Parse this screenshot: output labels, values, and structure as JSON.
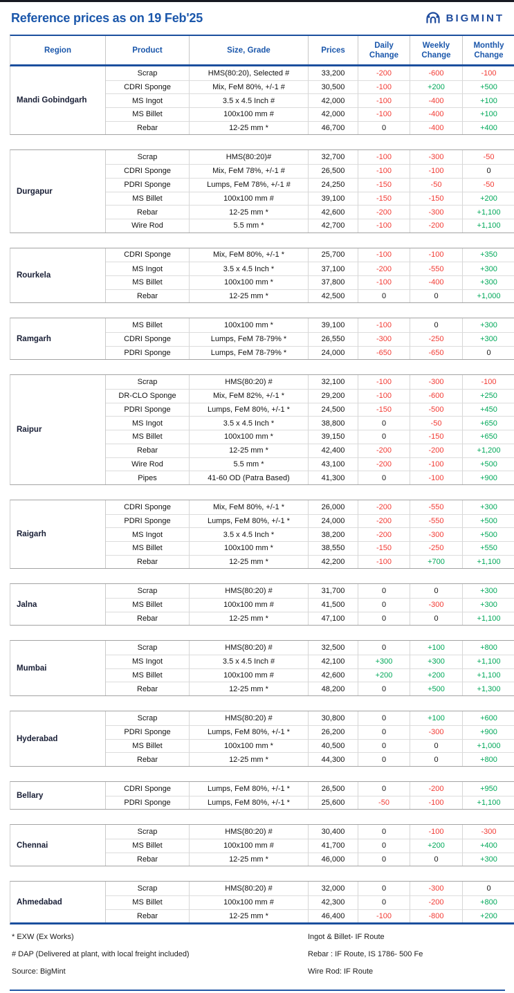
{
  "page": {
    "title": "Reference prices as on 19 Feb'25",
    "brand": "BIGMINT"
  },
  "colors": {
    "accent_blue": "#1b57ab",
    "table_border_blue": "#1b4f9e",
    "negative_red": "#f23a33",
    "positive_green": "#00a859"
  },
  "table": {
    "columns": [
      {
        "label": "Region"
      },
      {
        "label": "Product"
      },
      {
        "label": "Size, Grade"
      },
      {
        "label": "Prices"
      },
      {
        "label": "Daily",
        "label2": "Change"
      },
      {
        "label": "Weekly",
        "label2": "Change"
      },
      {
        "label": "Monthly",
        "label2": "Change"
      }
    ],
    "sections": [
      {
        "region": "Mandi Gobindgarh",
        "rows": [
          {
            "product": "Scrap",
            "size": "HMS(80:20), Selected #",
            "price": "33,200",
            "daily": "-200",
            "weekly": "-600",
            "monthly": "-100"
          },
          {
            "product": "CDRI Sponge",
            "size": "Mix, FeM 80%, +/-1 #",
            "price": "30,500",
            "daily": "-100",
            "weekly": "+200",
            "monthly": "+500"
          },
          {
            "product": "MS Ingot",
            "size": "3.5 x 4.5 Inch #",
            "price": "42,000",
            "daily": "-100",
            "weekly": "-400",
            "monthly": "+100"
          },
          {
            "product": "MS Billet",
            "size": "100x100 mm #",
            "price": "42,000",
            "daily": "-100",
            "weekly": "-400",
            "monthly": "+100"
          },
          {
            "product": "Rebar",
            "size": "12-25 mm *",
            "price": "46,700",
            "daily": "0",
            "weekly": "-400",
            "monthly": "+400"
          }
        ]
      },
      {
        "region": "Durgapur",
        "rows": [
          {
            "product": "Scrap",
            "size": "HMS(80:20)#",
            "price": "32,700",
            "daily": "-100",
            "weekly": "-300",
            "monthly": "-50"
          },
          {
            "product": "CDRI Sponge",
            "size": "Mix, FeM 78%, +/-1 #",
            "price": "26,500",
            "daily": "-100",
            "weekly": "-100",
            "monthly": "0"
          },
          {
            "product": "PDRI Sponge",
            "size": "Lumps, FeM 78%, +/-1 #",
            "price": "24,250",
            "daily": "-150",
            "weekly": "-50",
            "monthly": "-50"
          },
          {
            "product": "MS Billet",
            "size": "100x100 mm #",
            "price": "39,100",
            "daily": "-150",
            "weekly": "-150",
            "monthly": "+200"
          },
          {
            "product": "Rebar",
            "size": "12-25 mm *",
            "price": "42,600",
            "daily": "-200",
            "weekly": "-300",
            "monthly": "+1,100"
          },
          {
            "product": "Wire Rod",
            "size": "5.5 mm *",
            "price": "42,700",
            "daily": "-100",
            "weekly": "-200",
            "monthly": "+1,100"
          }
        ]
      },
      {
        "region": "Rourkela",
        "rows": [
          {
            "product": "CDRI Sponge",
            "size": "Mix, FeM 80%, +/-1 *",
            "price": "25,700",
            "daily": "-100",
            "weekly": "-100",
            "monthly": "+350"
          },
          {
            "product": "MS Ingot",
            "size": "3.5 x 4.5 Inch *",
            "price": "37,100",
            "daily": "-200",
            "weekly": "-550",
            "monthly": "+300"
          },
          {
            "product": "MS Billet",
            "size": "100x100 mm *",
            "price": "37,800",
            "daily": "-100",
            "weekly": "-400",
            "monthly": "+300"
          },
          {
            "product": "Rebar",
            "size": "12-25 mm *",
            "price": "42,500",
            "daily": "0",
            "weekly": "0",
            "monthly": "+1,000"
          }
        ]
      },
      {
        "region": "Ramgarh",
        "rows": [
          {
            "product": "MS Billet",
            "size": "100x100 mm *",
            "price": "39,100",
            "daily": "-100",
            "weekly": "0",
            "monthly": "+300"
          },
          {
            "product": "CDRI Sponge",
            "size": "Lumps, FeM 78-79% *",
            "price": "26,550",
            "daily": "-300",
            "weekly": "-250",
            "monthly": "+300"
          },
          {
            "product": "PDRI Sponge",
            "size": "Lumps, FeM 78-79% *",
            "price": "24,000",
            "daily": "-650",
            "weekly": "-650",
            "monthly": "0"
          }
        ]
      },
      {
        "region": "Raipur",
        "rows": [
          {
            "product": "Scrap",
            "size": "HMS(80:20) #",
            "price": "32,100",
            "daily": "-100",
            "weekly": "-300",
            "monthly": "-100"
          },
          {
            "product": "DR-CLO Sponge",
            "size": "Mix, FeM 82%, +/-1 *",
            "price": "29,200",
            "daily": "-100",
            "weekly": "-600",
            "monthly": "+250"
          },
          {
            "product": "PDRI Sponge",
            "size": "Lumps, FeM 80%, +/-1 *",
            "price": "24,500",
            "daily": "-150",
            "weekly": "-500",
            "monthly": "+450"
          },
          {
            "product": "MS Ingot",
            "size": "3.5 x 4.5 Inch *",
            "price": "38,800",
            "daily": "0",
            "weekly": "-50",
            "monthly": "+650"
          },
          {
            "product": "MS Billet",
            "size": "100x100 mm *",
            "price": "39,150",
            "daily": "0",
            "weekly": "-150",
            "monthly": "+650"
          },
          {
            "product": "Rebar",
            "size": "12-25 mm *",
            "price": "42,400",
            "daily": "-200",
            "weekly": "-200",
            "monthly": "+1,200"
          },
          {
            "product": "Wire Rod",
            "size": "5.5 mm *",
            "price": "43,100",
            "daily": "-200",
            "weekly": "-100",
            "monthly": "+500"
          },
          {
            "product": "Pipes",
            "size": "41-60 OD (Patra Based)",
            "price": "41,300",
            "daily": "0",
            "weekly": "-100",
            "monthly": "+900"
          }
        ]
      },
      {
        "region": "Raigarh",
        "rows": [
          {
            "product": "CDRI Sponge",
            "size": "Mix, FeM 80%, +/-1 *",
            "price": "26,000",
            "daily": "-200",
            "weekly": "-550",
            "monthly": "+300"
          },
          {
            "product": "PDRI Sponge",
            "size": "Lumps, FeM 80%, +/-1 *",
            "price": "24,000",
            "daily": "-200",
            "weekly": "-550",
            "monthly": "+500"
          },
          {
            "product": "MS Ingot",
            "size": "3.5 x 4.5 Inch *",
            "price": "38,200",
            "daily": "-200",
            "weekly": "-300",
            "monthly": "+500"
          },
          {
            "product": "MS Billet",
            "size": "100x100 mm *",
            "price": "38,550",
            "daily": "-150",
            "weekly": "-250",
            "monthly": "+550"
          },
          {
            "product": "Rebar",
            "size": "12-25 mm *",
            "price": "42,200",
            "daily": "-100",
            "weekly": "+700",
            "monthly": "+1,100"
          }
        ]
      },
      {
        "region": "Jalna",
        "rows": [
          {
            "product": "Scrap",
            "size": "HMS(80:20) #",
            "price": "31,700",
            "daily": "0",
            "weekly": "0",
            "monthly": "+300"
          },
          {
            "product": "MS Billet",
            "size": "100x100 mm #",
            "price": "41,500",
            "daily": "0",
            "weekly": "-300",
            "monthly": "+300"
          },
          {
            "product": "Rebar",
            "size": "12-25 mm *",
            "price": "47,100",
            "daily": "0",
            "weekly": "0",
            "monthly": "+1,100"
          }
        ]
      },
      {
        "region": "Mumbai",
        "rows": [
          {
            "product": "Scrap",
            "size": "HMS(80:20) #",
            "price": "32,500",
            "daily": "0",
            "weekly": "+100",
            "monthly": "+800"
          },
          {
            "product": "MS Ingot",
            "size": "3.5 x 4.5 Inch #",
            "price": "42,100",
            "daily": "+300",
            "weekly": "+300",
            "monthly": "+1,100"
          },
          {
            "product": "MS Billet",
            "size": "100x100 mm #",
            "price": "42,600",
            "daily": "+200",
            "weekly": "+200",
            "monthly": "+1,100"
          },
          {
            "product": "Rebar",
            "size": "12-25 mm *",
            "price": "48,200",
            "daily": "0",
            "weekly": "+500",
            "monthly": "+1,300"
          }
        ]
      },
      {
        "region": "Hyderabad",
        "rows": [
          {
            "product": "Scrap",
            "size": "HMS(80:20) #",
            "price": "30,800",
            "daily": "0",
            "weekly": "+100",
            "monthly": "+600"
          },
          {
            "product": "PDRI Sponge",
            "size": "Lumps, FeM 80%, +/-1 *",
            "price": "26,200",
            "daily": "0",
            "weekly": "-300",
            "monthly": "+900"
          },
          {
            "product": "MS Billet",
            "size": "100x100 mm *",
            "price": "40,500",
            "daily": "0",
            "weekly": "0",
            "monthly": "+1,000"
          },
          {
            "product": "Rebar",
            "size": "12-25 mm *",
            "price": "44,300",
            "daily": "0",
            "weekly": "0",
            "monthly": "+800"
          }
        ]
      },
      {
        "region": "Bellary",
        "rows": [
          {
            "product": "CDRI Sponge",
            "size": "Lumps, FeM 80%, +/-1 *",
            "price": "26,500",
            "daily": "0",
            "weekly": "-200",
            "monthly": "+950"
          },
          {
            "product": "PDRI Sponge",
            "size": "Lumps, FeM 80%, +/-1 *",
            "price": "25,600",
            "daily": "-50",
            "weekly": "-100",
            "monthly": "+1,100"
          }
        ]
      },
      {
        "region": "Chennai",
        "rows": [
          {
            "product": "Scrap",
            "size": "HMS(80:20) #",
            "price": "30,400",
            "daily": "0",
            "weekly": "-100",
            "monthly": "-300"
          },
          {
            "product": "MS Billet",
            "size": "100x100 mm  #",
            "price": "41,700",
            "daily": "0",
            "weekly": "+200",
            "monthly": "+400"
          },
          {
            "product": "Rebar",
            "size": "12-25 mm *",
            "price": "46,000",
            "daily": "0",
            "weekly": "0",
            "monthly": "+300"
          }
        ]
      },
      {
        "region": "Ahmedabad",
        "rows": [
          {
            "product": "Scrap",
            "size": "HMS(80:20) #",
            "price": "32,000",
            "daily": "0",
            "weekly": "-300",
            "monthly": "0"
          },
          {
            "product": "MS Billet",
            "size": "100x100 mm  #",
            "price": "42,300",
            "daily": "0",
            "weekly": "-200",
            "monthly": "+800"
          },
          {
            "product": "Rebar",
            "size": "12-25 mm *",
            "price": "46,400",
            "daily": "-100",
            "weekly": "-800",
            "monthly": "+200"
          }
        ]
      }
    ]
  },
  "footer": {
    "left": [
      "* EXW (Ex Works)",
      "# DAP (Delivered at plant, with local freight included)",
      "Source: BigMint"
    ],
    "right": [
      "Ingot & Billet- IF Route",
      "Rebar : IF Route, IS 1786- 500 Fe",
      "Wire Rod: IF Route"
    ]
  }
}
